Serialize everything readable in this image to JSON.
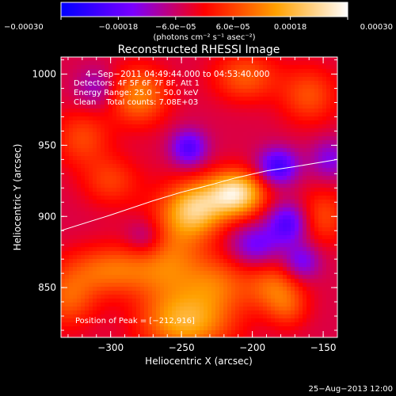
{
  "chart_data": {
    "type": "heatmap",
    "title": "Reconstructed RHESSI Image",
    "xlabel": "Heliocentric X (arcsec)",
    "ylabel": "Heliocentric Y (arcsec)",
    "xlim": [
      -335,
      -140
    ],
    "ylim": [
      815,
      1012
    ],
    "xticks": [
      -300,
      -250,
      -200,
      -150
    ],
    "xtick_labels": [
      "−300",
      "−250",
      "−200",
      "−150"
    ],
    "yticks": [
      850,
      900,
      950,
      1000
    ],
    "ytick_labels": [
      "850",
      "900",
      "950",
      "1000"
    ],
    "colorbar": {
      "range": [
        -0.0003,
        0.0003
      ],
      "tick_values": [
        -0.0003,
        -0.00018,
        -6e-05,
        6e-05,
        0.00018,
        0.0003
      ],
      "tick_labels": [
        "−0.00030",
        "−0.00018",
        "−6.0e−05",
        "6.0e−05",
        "0.00018",
        "0.00030"
      ],
      "unit_label": "(photons cm⁻² s⁻¹ asec⁻²)",
      "colors": [
        "#0000ff",
        "#7a00ff",
        "#ff0000",
        "#ffa000",
        "#ffffff"
      ]
    },
    "annotations": {
      "time_range": "4−Sep−2011 04:49:44.000 to 04:53:40.000",
      "detectors": "Detectors: 4F 5F 6F 7F 8F, Att 1",
      "energy_range": "Energy Range: 25.0 − 50.0 keV",
      "clean_counts": "Clean    Total counts: 7.08E+03",
      "peak_position": "Position of Peak = [−212,916]"
    },
    "peak": {
      "x": -212,
      "y": 916
    },
    "limb_curve": {
      "x": [
        -335,
        -300,
        -270,
        -250,
        -230,
        -212,
        -190,
        -170,
        -140
      ],
      "y": [
        890,
        901,
        911,
        917,
        922,
        927,
        932,
        935,
        940
      ]
    },
    "sources": [
      {
        "x": -212,
        "y": 916,
        "amp": 0.0003,
        "sx": 14,
        "sy": 11
      },
      {
        "x": -240,
        "y": 905,
        "amp": 0.00022,
        "sx": 14,
        "sy": 13
      },
      {
        "x": -258,
        "y": 870,
        "amp": 0.00014,
        "sx": 18,
        "sy": 28
      },
      {
        "x": -245,
        "y": 825,
        "amp": 0.00018,
        "sx": 22,
        "sy": 14
      },
      {
        "x": -225,
        "y": 852,
        "amp": 0.00012,
        "sx": 16,
        "sy": 14
      },
      {
        "x": -300,
        "y": 862,
        "amp": 0.00014,
        "sx": 22,
        "sy": 12
      },
      {
        "x": -330,
        "y": 842,
        "amp": 0.00012,
        "sx": 14,
        "sy": 14
      },
      {
        "x": -280,
        "y": 985,
        "amp": 0.00016,
        "sx": 14,
        "sy": 14
      },
      {
        "x": -320,
        "y": 955,
        "amp": 0.0001,
        "sx": 14,
        "sy": 14
      },
      {
        "x": -300,
        "y": 925,
        "amp": 9e-05,
        "sx": 14,
        "sy": 12
      },
      {
        "x": -205,
        "y": 998,
        "amp": 0.00012,
        "sx": 16,
        "sy": 12
      },
      {
        "x": -160,
        "y": 985,
        "amp": 0.00011,
        "sx": 14,
        "sy": 14
      },
      {
        "x": -150,
        "y": 900,
        "amp": 0.0001,
        "sx": 12,
        "sy": 14
      },
      {
        "x": -185,
        "y": 850,
        "amp": 0.00013,
        "sx": 14,
        "sy": 12
      },
      {
        "x": -175,
        "y": 835,
        "amp": 8e-05,
        "sx": 10,
        "sy": 10
      },
      {
        "x": -245,
        "y": 948,
        "amp": -0.00016,
        "sx": 9,
        "sy": 9
      },
      {
        "x": -182,
        "y": 935,
        "amp": -0.00018,
        "sx": 10,
        "sy": 9
      },
      {
        "x": -175,
        "y": 895,
        "amp": -0.00016,
        "sx": 10,
        "sy": 10
      },
      {
        "x": -198,
        "y": 880,
        "amp": -0.00012,
        "sx": 12,
        "sy": 10
      },
      {
        "x": -165,
        "y": 868,
        "amp": -0.00012,
        "sx": 9,
        "sy": 9
      },
      {
        "x": -275,
        "y": 885,
        "amp": -0.0001,
        "sx": 10,
        "sy": 10
      },
      {
        "x": -145,
        "y": 940,
        "amp": -0.0001,
        "sx": 10,
        "sy": 10
      },
      {
        "x": -310,
        "y": 990,
        "amp": -8e-05,
        "sx": 10,
        "sy": 10
      }
    ]
  },
  "footer": {
    "timestamp": "25−Aug−2013 12:00"
  }
}
